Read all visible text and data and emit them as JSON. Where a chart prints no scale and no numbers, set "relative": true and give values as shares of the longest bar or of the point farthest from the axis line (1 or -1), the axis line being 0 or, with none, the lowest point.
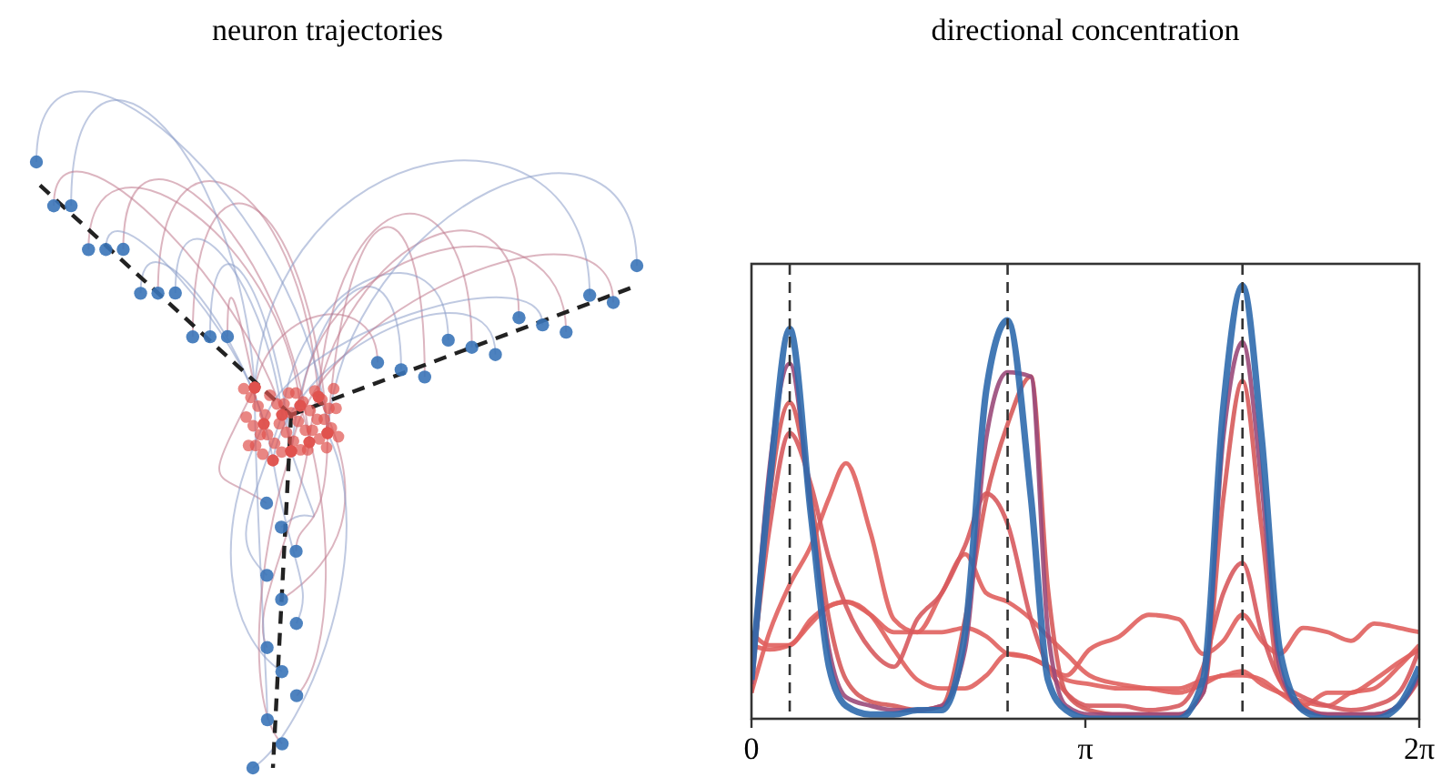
{
  "chart_data": [
    {
      "type": "other",
      "title": "neuron trajectories"
    },
    {
      "type": "line",
      "title": "directional concentration",
      "relative": true,
      "xlim": [
        0,
        6.2832
      ],
      "xticks": [
        {
          "value": 0,
          "label": "0"
        },
        {
          "value": 3.1416,
          "label": "π"
        },
        {
          "value": 6.2832,
          "label": "2π"
        }
      ],
      "x": [
        0,
        0.17,
        0.36,
        0.56,
        0.73,
        0.89,
        1.12,
        1.34,
        1.56,
        1.79,
        2.01,
        2.21,
        2.41,
        2.63,
        2.79,
        2.96,
        3.18,
        3.46,
        3.74,
        4.02,
        4.25,
        4.44,
        4.62,
        4.8,
        4.97,
        5.19,
        5.42,
        5.64,
        5.86,
        6.09,
        6.2832
      ],
      "ref_lines": [
        {
          "axis": "x",
          "value": 0.36,
          "color": "#333333",
          "line_style": "dashed"
        },
        {
          "axis": "x",
          "value": 2.41,
          "color": "#333333",
          "line_style": "dashed"
        },
        {
          "axis": "x",
          "value": 4.62,
          "color": "#333333",
          "line_style": "dashed"
        }
      ],
      "series": [
        {
          "color": "#e0605e",
          "values": [
            0.17,
            0.16,
            0.17,
            0.22,
            0.26,
            0.27,
            0.24,
            0.2,
            0.2,
            0.2,
            0.21,
            0.19,
            0.15,
            0.14,
            0.12,
            0.1,
            0.16,
            0.19,
            0.24,
            0.23,
            0.15,
            0.18,
            0.24,
            0.18,
            0.15,
            0.21,
            0.2,
            0.18,
            0.22,
            0.21,
            0.2
          ]
        },
        {
          "color": "#e0605e",
          "values": [
            0.06,
            0.2,
            0.31,
            0.4,
            0.51,
            0.59,
            0.43,
            0.23,
            0.2,
            0.29,
            0.38,
            0.29,
            0.27,
            0.23,
            0.19,
            0.15,
            0.1,
            0.08,
            0.07,
            0.06,
            0.08,
            0.1,
            0.1,
            0.09,
            0.06,
            0.03,
            0.06,
            0.06,
            0.09,
            0.13,
            0.16
          ]
        },
        {
          "color": "#e0605e",
          "values": [
            0.2,
            0.17,
            0.17,
            0.23,
            0.26,
            0.27,
            0.24,
            0.16,
            0.09,
            0.07,
            0.07,
            0.1,
            0.15,
            0.14,
            0.12,
            0.09,
            0.08,
            0.07,
            0.07,
            0.07,
            0.09,
            0.1,
            0.11,
            0.08,
            0.06,
            0.04,
            0.03,
            0.06,
            0.07,
            0.12,
            0.17
          ]
        },
        {
          "color": "#d75a5e",
          "values": [
            0.1,
            0.44,
            0.66,
            0.54,
            0.37,
            0.26,
            0.16,
            0.12,
            0.23,
            0.29,
            0.4,
            0.52,
            0.45,
            0.23,
            0.12,
            0.06,
            0.03,
            0.03,
            0.02,
            0.03,
            0.12,
            0.29,
            0.36,
            0.2,
            0.09,
            0.05,
            0.03,
            0.02,
            0.03,
            0.06,
            0.16
          ]
        },
        {
          "color": "#d65a5a",
          "values": [
            0.06,
            0.51,
            0.73,
            0.51,
            0.23,
            0.09,
            0.04,
            0.03,
            0.02,
            0.03,
            0.23,
            0.51,
            0.68,
            0.79,
            0.3,
            0.06,
            0.02,
            0.01,
            0.01,
            0.01,
            0.06,
            0.51,
            0.78,
            0.44,
            0.09,
            0.03,
            0.01,
            0.01,
            0.01,
            0.03,
            0.09
          ]
        },
        {
          "color": "#9a4a7a",
          "values": [
            0.08,
            0.58,
            0.82,
            0.48,
            0.16,
            0.05,
            0.03,
            0.02,
            0.02,
            0.03,
            0.16,
            0.65,
            0.8,
            0.79,
            0.2,
            0.03,
            0.01,
            0.01,
            0.01,
            0.01,
            0.06,
            0.65,
            0.87,
            0.54,
            0.12,
            0.02,
            0.01,
            0.01,
            0.01,
            0.03,
            0.1
          ]
        },
        {
          "color": "#2f6aad",
          "values": [
            0.09,
            0.54,
            0.9,
            0.47,
            0.12,
            0.03,
            0.01,
            0.01,
            0.02,
            0.02,
            0.2,
            0.76,
            0.92,
            0.51,
            0.09,
            0.02,
            0,
            0,
            0,
            0,
            0.09,
            0.72,
            1,
            0.65,
            0.16,
            0.02,
            0,
            0,
            0,
            0.03,
            0.12
          ]
        }
      ]
    }
  ]
}
